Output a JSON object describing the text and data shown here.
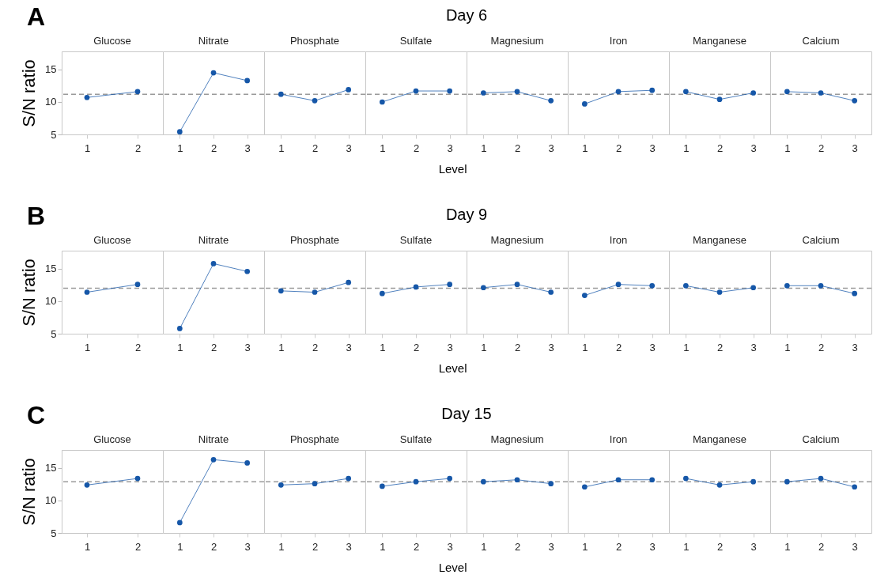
{
  "chart_data": [
    {
      "type": "line",
      "title": "Glucose",
      "ylabel": "S/N ratio",
      "annotations": [
        "A",
        "Day 6"
      ],
      "categories": [
        "1",
        "2"
      ],
      "series": [
        {
          "color": "#1657a8",
          "values": [
            10.7,
            11.6
          ]
        }
      ],
      "ylim": [
        5,
        17.8
      ],
      "yticks": [
        5,
        10,
        15
      ],
      "ref_lines": [
        {
          "axis": "y",
          "value": 11.2,
          "color": "#9a9a9a",
          "line_style": "dashed"
        }
      ],
      "marker": "circle"
    },
    {
      "type": "line",
      "title": "Nitrate",
      "categories": [
        "1",
        "2",
        "3"
      ],
      "series": [
        {
          "color": "#1657a8",
          "values": [
            5.4,
            14.5,
            13.3
          ]
        }
      ],
      "ylim": [
        5,
        17.8
      ],
      "yticks": [
        5,
        10,
        15
      ],
      "tick_labels": "x",
      "ref_lines": [
        {
          "axis": "y",
          "value": 11.2,
          "color": "#9a9a9a",
          "line_style": "dashed"
        }
      ],
      "marker": "circle"
    },
    {
      "type": "line",
      "title": "Phosphate",
      "categories": [
        "1",
        "2",
        "3"
      ],
      "series": [
        {
          "color": "#1657a8",
          "values": [
            11.2,
            10.2,
            11.9
          ]
        }
      ],
      "ylim": [
        5,
        17.8
      ],
      "yticks": [
        5,
        10,
        15
      ],
      "tick_labels": "x",
      "ref_lines": [
        {
          "axis": "y",
          "value": 11.2,
          "color": "#9a9a9a",
          "line_style": "dashed"
        }
      ],
      "marker": "circle"
    },
    {
      "type": "line",
      "title": "Sulfate",
      "xlabel": "Level",
      "categories": [
        "1",
        "2",
        "3"
      ],
      "series": [
        {
          "color": "#1657a8",
          "values": [
            10.0,
            11.7,
            11.7
          ]
        }
      ],
      "ylim": [
        5,
        17.8
      ],
      "yticks": [
        5,
        10,
        15
      ],
      "tick_labels": "x",
      "ref_lines": [
        {
          "axis": "y",
          "value": 11.2,
          "color": "#9a9a9a",
          "line_style": "dashed"
        }
      ],
      "marker": "circle"
    },
    {
      "type": "line",
      "title": "Magnesium",
      "categories": [
        "1",
        "2",
        "3"
      ],
      "series": [
        {
          "color": "#1657a8",
          "values": [
            11.4,
            11.6,
            10.2
          ]
        }
      ],
      "ylim": [
        5,
        17.8
      ],
      "yticks": [
        5,
        10,
        15
      ],
      "tick_labels": "x",
      "ref_lines": [
        {
          "axis": "y",
          "value": 11.2,
          "color": "#9a9a9a",
          "line_style": "dashed"
        }
      ],
      "marker": "circle"
    },
    {
      "type": "line",
      "title": "Iron",
      "categories": [
        "1",
        "2",
        "3"
      ],
      "series": [
        {
          "color": "#1657a8",
          "values": [
            9.7,
            11.6,
            11.8
          ]
        }
      ],
      "ylim": [
        5,
        17.8
      ],
      "yticks": [
        5,
        10,
        15
      ],
      "tick_labels": "x",
      "ref_lines": [
        {
          "axis": "y",
          "value": 11.2,
          "color": "#9a9a9a",
          "line_style": "dashed"
        }
      ],
      "marker": "circle"
    },
    {
      "type": "line",
      "title": "Manganese",
      "categories": [
        "1",
        "2",
        "3"
      ],
      "series": [
        {
          "color": "#1657a8",
          "values": [
            11.6,
            10.4,
            11.4
          ]
        }
      ],
      "ylim": [
        5,
        17.8
      ],
      "yticks": [
        5,
        10,
        15
      ],
      "tick_labels": "x",
      "ref_lines": [
        {
          "axis": "y",
          "value": 11.2,
          "color": "#9a9a9a",
          "line_style": "dashed"
        }
      ],
      "marker": "circle"
    },
    {
      "type": "line",
      "title": "Calcium",
      "categories": [
        "1",
        "2",
        "3"
      ],
      "series": [
        {
          "color": "#1657a8",
          "values": [
            11.6,
            11.4,
            10.2
          ]
        }
      ],
      "ylim": [
        5,
        17.8
      ],
      "yticks": [
        5,
        10,
        15
      ],
      "tick_labels": "x",
      "ref_lines": [
        {
          "axis": "y",
          "value": 11.2,
          "color": "#9a9a9a",
          "line_style": "dashed"
        }
      ],
      "marker": "circle"
    },
    {
      "type": "line",
      "title": "Glucose",
      "ylabel": "S/N ratio",
      "annotations": [
        "B",
        "Day 9"
      ],
      "categories": [
        "1",
        "2"
      ],
      "series": [
        {
          "color": "#1657a8",
          "values": [
            11.4,
            12.6
          ]
        }
      ],
      "ylim": [
        5,
        17.8
      ],
      "yticks": [
        5,
        10,
        15
      ],
      "ref_lines": [
        {
          "axis": "y",
          "value": 12.0,
          "color": "#9a9a9a",
          "line_style": "dashed"
        }
      ],
      "marker": "circle"
    },
    {
      "type": "line",
      "title": "Nitrate",
      "categories": [
        "1",
        "2",
        "3"
      ],
      "series": [
        {
          "color": "#1657a8",
          "values": [
            5.8,
            15.8,
            14.6
          ]
        }
      ],
      "ylim": [
        5,
        17.8
      ],
      "yticks": [
        5,
        10,
        15
      ],
      "tick_labels": "x",
      "ref_lines": [
        {
          "axis": "y",
          "value": 12.0,
          "color": "#9a9a9a",
          "line_style": "dashed"
        }
      ],
      "marker": "circle"
    },
    {
      "type": "line",
      "title": "Phosphate",
      "categories": [
        "1",
        "2",
        "3"
      ],
      "series": [
        {
          "color": "#1657a8",
          "values": [
            11.6,
            11.4,
            12.9
          ]
        }
      ],
      "ylim": [
        5,
        17.8
      ],
      "yticks": [
        5,
        10,
        15
      ],
      "tick_labels": "x",
      "ref_lines": [
        {
          "axis": "y",
          "value": 12.0,
          "color": "#9a9a9a",
          "line_style": "dashed"
        }
      ],
      "marker": "circle"
    },
    {
      "type": "line",
      "title": "Sulfate",
      "xlabel": "Level",
      "categories": [
        "1",
        "2",
        "3"
      ],
      "series": [
        {
          "color": "#1657a8",
          "values": [
            11.2,
            12.2,
            12.6
          ]
        }
      ],
      "ylim": [
        5,
        17.8
      ],
      "yticks": [
        5,
        10,
        15
      ],
      "tick_labels": "x",
      "ref_lines": [
        {
          "axis": "y",
          "value": 12.0,
          "color": "#9a9a9a",
          "line_style": "dashed"
        }
      ],
      "marker": "circle"
    },
    {
      "type": "line",
      "title": "Magnesium",
      "categories": [
        "1",
        "2",
        "3"
      ],
      "series": [
        {
          "color": "#1657a8",
          "values": [
            12.1,
            12.6,
            11.4
          ]
        }
      ],
      "ylim": [
        5,
        17.8
      ],
      "yticks": [
        5,
        10,
        15
      ],
      "tick_labels": "x",
      "ref_lines": [
        {
          "axis": "y",
          "value": 12.0,
          "color": "#9a9a9a",
          "line_style": "dashed"
        }
      ],
      "marker": "circle"
    },
    {
      "type": "line",
      "title": "Iron",
      "categories": [
        "1",
        "2",
        "3"
      ],
      "series": [
        {
          "color": "#1657a8",
          "values": [
            10.9,
            12.6,
            12.4
          ]
        }
      ],
      "ylim": [
        5,
        17.8
      ],
      "yticks": [
        5,
        10,
        15
      ],
      "tick_labels": "x",
      "ref_lines": [
        {
          "axis": "y",
          "value": 12.0,
          "color": "#9a9a9a",
          "line_style": "dashed"
        }
      ],
      "marker": "circle"
    },
    {
      "type": "line",
      "title": "Manganese",
      "categories": [
        "1",
        "2",
        "3"
      ],
      "series": [
        {
          "color": "#1657a8",
          "values": [
            12.4,
            11.4,
            12.1
          ]
        }
      ],
      "ylim": [
        5,
        17.8
      ],
      "yticks": [
        5,
        10,
        15
      ],
      "tick_labels": "x",
      "ref_lines": [
        {
          "axis": "y",
          "value": 12.0,
          "color": "#9a9a9a",
          "line_style": "dashed"
        }
      ],
      "marker": "circle"
    },
    {
      "type": "line",
      "title": "Calcium",
      "categories": [
        "1",
        "2",
        "3"
      ],
      "series": [
        {
          "color": "#1657a8",
          "values": [
            12.4,
            12.4,
            11.2
          ]
        }
      ],
      "ylim": [
        5,
        17.8
      ],
      "yticks": [
        5,
        10,
        15
      ],
      "tick_labels": "x",
      "ref_lines": [
        {
          "axis": "y",
          "value": 12.0,
          "color": "#9a9a9a",
          "line_style": "dashed"
        }
      ],
      "marker": "circle"
    },
    {
      "type": "line",
      "title": "Glucose",
      "ylabel": "S/N ratio",
      "annotations": [
        "C",
        "Day 15"
      ],
      "categories": [
        "1",
        "2"
      ],
      "series": [
        {
          "color": "#1657a8",
          "values": [
            12.4,
            13.4
          ]
        }
      ],
      "ylim": [
        5,
        17.8
      ],
      "yticks": [
        5,
        10,
        15
      ],
      "ref_lines": [
        {
          "axis": "y",
          "value": 12.9,
          "color": "#9a9a9a",
          "line_style": "dashed"
        }
      ],
      "marker": "circle"
    },
    {
      "type": "line",
      "title": "Nitrate",
      "categories": [
        "1",
        "2",
        "3"
      ],
      "series": [
        {
          "color": "#1657a8",
          "values": [
            6.6,
            16.3,
            15.8
          ]
        }
      ],
      "ylim": [
        5,
        17.8
      ],
      "yticks": [
        5,
        10,
        15
      ],
      "tick_labels": "x",
      "ref_lines": [
        {
          "axis": "y",
          "value": 12.9,
          "color": "#9a9a9a",
          "line_style": "dashed"
        }
      ],
      "marker": "circle"
    },
    {
      "type": "line",
      "title": "Phosphate",
      "categories": [
        "1",
        "2",
        "3"
      ],
      "series": [
        {
          "color": "#1657a8",
          "values": [
            12.4,
            12.6,
            13.4
          ]
        }
      ],
      "ylim": [
        5,
        17.8
      ],
      "yticks": [
        5,
        10,
        15
      ],
      "tick_labels": "x",
      "ref_lines": [
        {
          "axis": "y",
          "value": 12.9,
          "color": "#9a9a9a",
          "line_style": "dashed"
        }
      ],
      "marker": "circle"
    },
    {
      "type": "line",
      "title": "Sulfate",
      "xlabel": "Level",
      "categories": [
        "1",
        "2",
        "3"
      ],
      "series": [
        {
          "color": "#1657a8",
          "values": [
            12.2,
            12.9,
            13.4
          ]
        }
      ],
      "ylim": [
        5,
        17.8
      ],
      "yticks": [
        5,
        10,
        15
      ],
      "tick_labels": "x",
      "ref_lines": [
        {
          "axis": "y",
          "value": 12.9,
          "color": "#9a9a9a",
          "line_style": "dashed"
        }
      ],
      "marker": "circle"
    },
    {
      "type": "line",
      "title": "Magnesium",
      "categories": [
        "1",
        "2",
        "3"
      ],
      "series": [
        {
          "color": "#1657a8",
          "values": [
            12.9,
            13.2,
            12.6
          ]
        }
      ],
      "ylim": [
        5,
        17.8
      ],
      "yticks": [
        5,
        10,
        15
      ],
      "tick_labels": "x",
      "ref_lines": [
        {
          "axis": "y",
          "value": 12.9,
          "color": "#9a9a9a",
          "line_style": "dashed"
        }
      ],
      "marker": "circle"
    },
    {
      "type": "line",
      "title": "Iron",
      "categories": [
        "1",
        "2",
        "3"
      ],
      "series": [
        {
          "color": "#1657a8",
          "values": [
            12.1,
            13.2,
            13.2
          ]
        }
      ],
      "ylim": [
        5,
        17.8
      ],
      "yticks": [
        5,
        10,
        15
      ],
      "tick_labels": "x",
      "ref_lines": [
        {
          "axis": "y",
          "value": 12.9,
          "color": "#9a9a9a",
          "line_style": "dashed"
        }
      ],
      "marker": "circle"
    },
    {
      "type": "line",
      "title": "Manganese",
      "categories": [
        "1",
        "2",
        "3"
      ],
      "series": [
        {
          "color": "#1657a8",
          "values": [
            13.4,
            12.4,
            12.9
          ]
        }
      ],
      "ylim": [
        5,
        17.8
      ],
      "yticks": [
        5,
        10,
        15
      ],
      "tick_labels": "x",
      "ref_lines": [
        {
          "axis": "y",
          "value": 12.9,
          "color": "#9a9a9a",
          "line_style": "dashed"
        }
      ],
      "marker": "circle"
    },
    {
      "type": "line",
      "title": "Calcium",
      "categories": [
        "1",
        "2",
        "3"
      ],
      "series": [
        {
          "color": "#1657a8",
          "values": [
            12.9,
            13.4,
            12.1
          ]
        }
      ],
      "ylim": [
        5,
        17.8
      ],
      "yticks": [
        5,
        10,
        15
      ],
      "tick_labels": "x",
      "ref_lines": [
        {
          "axis": "y",
          "value": 12.9,
          "color": "#9a9a9a",
          "line_style": "dashed"
        }
      ],
      "marker": "circle"
    }
  ]
}
